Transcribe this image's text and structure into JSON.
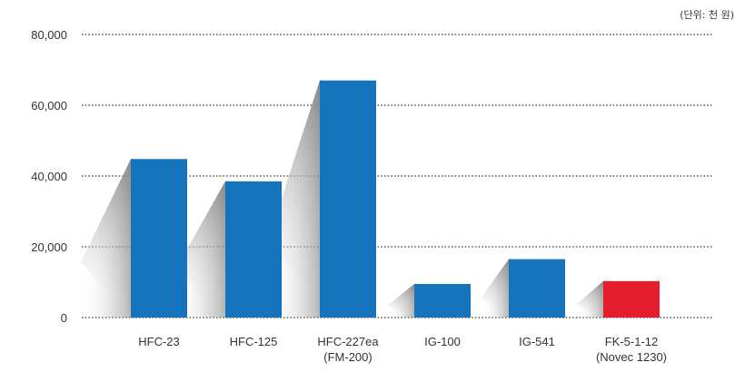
{
  "unit_note": "(단위: 천 원)",
  "colors": {
    "bar": "#1674bd",
    "highlight_bar": "#e41d2d",
    "grid": "#333333"
  },
  "chart_data": {
    "type": "bar",
    "title": "",
    "xlabel": "",
    "ylabel": "",
    "ylim": [
      0,
      80000
    ],
    "yticks": [
      0,
      20000,
      40000,
      60000,
      80000
    ],
    "ytick_labels": [
      "0",
      "20,000",
      "40,000",
      "60,000",
      "80,000"
    ],
    "grid": "horizontal dotted",
    "categories": [
      [
        "HFC-23"
      ],
      [
        "HFC-125"
      ],
      [
        "HFC-227ea",
        "(FM-200)"
      ],
      [
        "IG-100"
      ],
      [
        "IG-541"
      ],
      [
        "FK-5-1-12",
        "(Novec 1230)"
      ]
    ],
    "values": [
      44800,
      38500,
      67000,
      9500,
      16500,
      10300
    ],
    "highlight_index": 5
  }
}
